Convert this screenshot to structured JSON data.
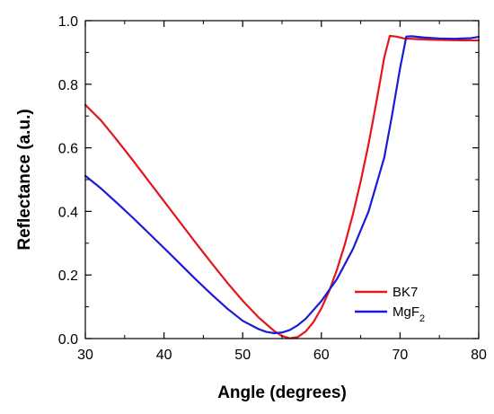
{
  "chart_data": {
    "type": "line",
    "title": "",
    "xlabel": "Angle (degrees)",
    "ylabel": "Reflectance (a.u.)",
    "xlim": [
      30,
      80
    ],
    "ylim": [
      0.0,
      1.0
    ],
    "xticks": [
      30,
      40,
      50,
      60,
      70,
      80
    ],
    "yticks": [
      0.0,
      0.2,
      0.4,
      0.6,
      0.8,
      1.0
    ],
    "xtick_labels": [
      "30",
      "40",
      "50",
      "60",
      "70",
      "80"
    ],
    "ytick_labels": [
      "0.0",
      "0.2",
      "0.4",
      "0.6",
      "0.8",
      "1.0"
    ],
    "grid": false,
    "legend_position": "bottom-right",
    "series": [
      {
        "name": "BK7",
        "name_main": "BK7",
        "name_sub": "",
        "color": "#e8141c",
        "x": [
          30,
          32,
          34,
          36,
          38,
          40,
          42,
          44,
          46,
          48,
          50,
          52,
          54,
          55,
          56,
          57,
          58,
          59,
          60,
          61,
          62,
          63,
          64,
          65,
          66,
          67,
          68,
          68.7,
          69.5,
          70.5,
          72,
          74,
          76,
          78,
          80
        ],
        "y": [
          0.735,
          0.686,
          0.625,
          0.562,
          0.497,
          0.432,
          0.367,
          0.302,
          0.239,
          0.177,
          0.119,
          0.067,
          0.024,
          0.008,
          0.001,
          0.005,
          0.022,
          0.052,
          0.095,
          0.15,
          0.218,
          0.298,
          0.39,
          0.495,
          0.612,
          0.745,
          0.885,
          0.952,
          0.95,
          0.944,
          0.942,
          0.94,
          0.939,
          0.938,
          0.938
        ]
      },
      {
        "name": "MgF2",
        "name_main": "MgF",
        "name_sub": "2",
        "color": "#1a1ad8",
        "x": [
          30,
          32,
          34,
          36,
          38,
          40,
          42,
          44,
          46,
          48,
          50,
          52,
          53,
          54,
          55,
          56,
          57,
          58,
          60,
          62,
          64,
          66,
          68,
          69,
          70,
          70.8,
          71.5,
          73,
          75,
          77,
          79,
          80
        ],
        "y": [
          0.512,
          0.472,
          0.427,
          0.381,
          0.333,
          0.285,
          0.236,
          0.187,
          0.14,
          0.095,
          0.056,
          0.03,
          0.021,
          0.017,
          0.019,
          0.027,
          0.042,
          0.062,
          0.118,
          0.188,
          0.281,
          0.4,
          0.57,
          0.705,
          0.85,
          0.95,
          0.951,
          0.947,
          0.944,
          0.943,
          0.945,
          0.949
        ]
      }
    ]
  }
}
